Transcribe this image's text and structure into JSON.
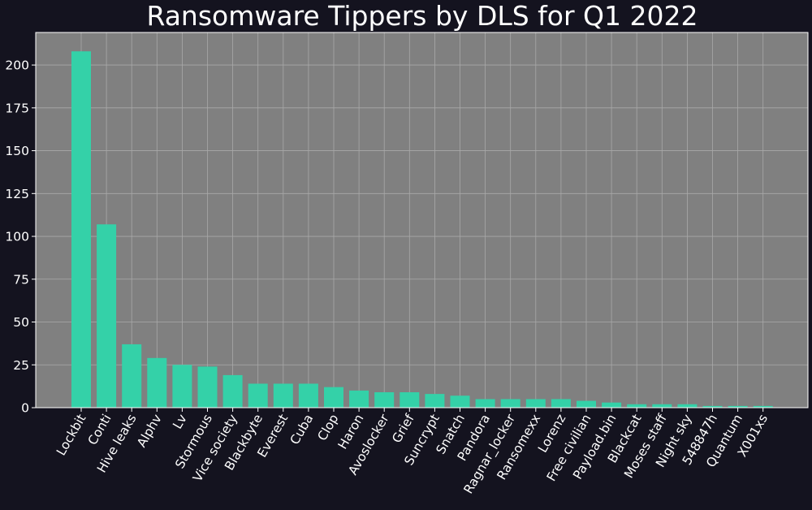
{
  "chart_data": {
    "type": "bar",
    "title": "Ransomware Tippers by DLS for Q1 2022",
    "xlabel": "",
    "ylabel": "",
    "categories": [
      "Lockbit",
      "Conti",
      "Hive leaks",
      "Alphv",
      "Lv",
      "Stormous",
      "Vice society",
      "Blackbyte",
      "Everest",
      "Cuba",
      "Clop",
      "Haron",
      "Avoslocker",
      "Grief",
      "Suncrypt",
      "Snatch",
      "Pandora",
      "Ragnar_locker",
      "Ransomexx",
      "Lorenz",
      "Free civilian",
      "Payload.bin",
      "Blackcat",
      "Moses staff",
      "Night sky",
      "548847h",
      "Quantum",
      "X001xs"
    ],
    "values": [
      208,
      107,
      37,
      29,
      25,
      24,
      19,
      14,
      14,
      14,
      12,
      10,
      9,
      9,
      8,
      7,
      5,
      5,
      5,
      5,
      4,
      3,
      2,
      2,
      2,
      1,
      1,
      1
    ],
    "ylim": [
      0,
      219
    ],
    "yticks": [
      0,
      25,
      50,
      75,
      100,
      125,
      150,
      175,
      200
    ],
    "grid": true,
    "legend": "none",
    "colors": {
      "bar": "#34d1a8",
      "plot_background": "#808080",
      "figure_background": "#14131f",
      "grid": "#a9a9a9",
      "axis": "#ffffff",
      "text": "#ffffff"
    }
  }
}
